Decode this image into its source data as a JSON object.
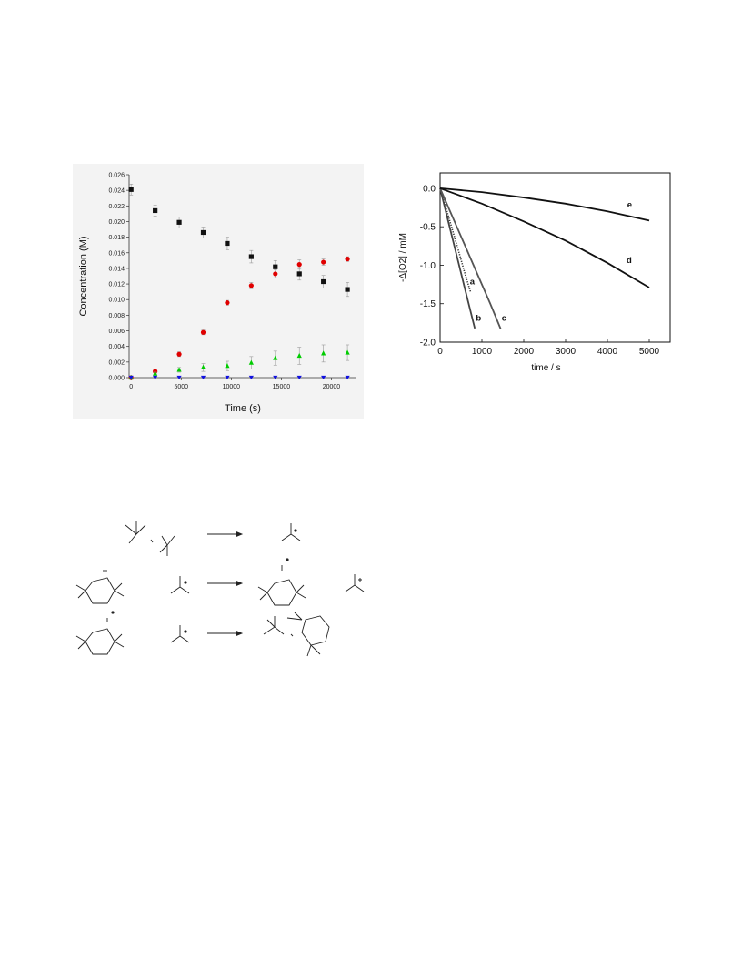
{
  "chart_data": [
    {
      "type": "scatter",
      "title": "",
      "xlabel": "Time (s)",
      "ylabel": "Concentration (M)",
      "xlim": [
        -200,
        22500
      ],
      "ylim": [
        0,
        0.026
      ],
      "x_ticks": [
        "0",
        "5000",
        "10000",
        "15000",
        "20000"
      ],
      "x_tick_values": [
        0,
        5000,
        10000,
        15000,
        20000
      ],
      "y_ticks": [
        "0.000",
        "0.002",
        "0.004",
        "0.006",
        "0.008",
        "0.010",
        "0.012",
        "0.014",
        "0.016",
        "0.018",
        "0.020",
        "0.022",
        "0.024",
        "0.026"
      ],
      "y_tick_values": [
        0,
        0.002,
        0.004,
        0.006,
        0.008,
        0.01,
        0.012,
        0.014,
        0.016,
        0.018,
        0.02,
        0.022,
        0.024,
        0.026
      ],
      "grid": false,
      "series": [
        {
          "color": "#111111",
          "marker": "square",
          "x": [
            0,
            2400,
            4800,
            7200,
            9600,
            12000,
            14400,
            16800,
            19200,
            21600
          ],
          "y": [
            0.0241,
            0.0214,
            0.0199,
            0.0186,
            0.0172,
            0.0155,
            0.0142,
            0.0133,
            0.0123,
            0.0113
          ],
          "err": [
            0.0007,
            0.0007,
            0.0007,
            0.0007,
            0.0008,
            0.0008,
            0.0008,
            0.0008,
            0.0008,
            0.0009
          ]
        },
        {
          "color": "#e00000",
          "marker": "circle",
          "x": [
            0,
            2400,
            4800,
            7200,
            9600,
            12000,
            14400,
            16800,
            19200,
            21600
          ],
          "y": [
            0.0,
            0.0008,
            0.003,
            0.0058,
            0.0096,
            0.0118,
            0.0133,
            0.0145,
            0.0148,
            0.0152
          ],
          "err": [
            0.0002,
            0.0002,
            0.0003,
            0.0003,
            0.0003,
            0.0004,
            0.0005,
            0.0006,
            0.0004,
            0.0003
          ]
        },
        {
          "color": "#00cc00",
          "marker": "triangle-up",
          "x": [
            0,
            2400,
            4800,
            7200,
            9600,
            12000,
            14400,
            16800,
            19200,
            21600
          ],
          "y": [
            0.0,
            0.0005,
            0.001,
            0.0013,
            0.0015,
            0.0019,
            0.0025,
            0.0028,
            0.0031,
            0.0032
          ],
          "err": [
            0.0001,
            0.0002,
            0.0003,
            0.0005,
            0.0006,
            0.0008,
            0.0009,
            0.0011,
            0.0011,
            0.001
          ]
        },
        {
          "color": "#1010e0",
          "marker": "triangle-down",
          "x": [
            0,
            2400,
            4800,
            7200,
            9600,
            12000,
            14400,
            16800,
            19200,
            21600
          ],
          "y": [
            0,
            0,
            0,
            0,
            0,
            0,
            0,
            0,
            0,
            0
          ],
          "err": [
            0,
            0,
            0,
            0,
            0,
            0,
            0,
            0,
            0,
            0
          ]
        }
      ]
    },
    {
      "type": "line",
      "title": "",
      "xlabel": "time / s",
      "ylabel": "-Δ[O2] / mM",
      "xlim": [
        0,
        5500
      ],
      "ylim": [
        -2.0,
        0.2
      ],
      "x_ticks": [
        "0",
        "1000",
        "2000",
        "3000",
        "4000",
        "5000"
      ],
      "x_tick_values": [
        0,
        1000,
        2000,
        3000,
        4000,
        5000
      ],
      "y_ticks": [
        "0.0",
        "-0.5",
        "-1.0",
        "-1.5",
        "-2.0"
      ],
      "y_tick_values": [
        0,
        -0.5,
        -1.0,
        -1.5,
        -2.0
      ],
      "grid": false,
      "series": [
        {
          "label": "a",
          "color": "#333333",
          "style": "dotted",
          "x": [
            0,
            150,
            300,
            450,
            600,
            730
          ],
          "y": [
            0,
            -0.27,
            -0.55,
            -0.83,
            -1.12,
            -1.35
          ],
          "label_at": [
            770,
            -1.25
          ]
        },
        {
          "label": "b",
          "color": "#444444",
          "style": "solid",
          "x": [
            0,
            200,
            400,
            600,
            830
          ],
          "y": [
            0,
            -0.44,
            -0.88,
            -1.32,
            -1.82
          ],
          "label_at": [
            920,
            -1.72
          ]
        },
        {
          "label": "c",
          "color": "#555555",
          "style": "solid",
          "x": [
            0,
            400,
            800,
            1200,
            1450
          ],
          "y": [
            0,
            -0.5,
            -1.0,
            -1.5,
            -1.83
          ],
          "label_at": [
            1530,
            -1.72
          ]
        },
        {
          "label": "d",
          "color": "#111111",
          "style": "solid",
          "x": [
            0,
            1000,
            2000,
            3000,
            4000,
            5000
          ],
          "y": [
            0,
            -0.2,
            -0.43,
            -0.68,
            -0.97,
            -1.29
          ],
          "label_at": [
            4520,
            -0.97
          ]
        },
        {
          "label": "e",
          "color": "#111111",
          "style": "solid",
          "x": [
            0,
            1000,
            2000,
            3000,
            4000,
            5000
          ],
          "y": [
            0,
            -0.05,
            -0.12,
            -0.2,
            -0.3,
            -0.42
          ],
          "label_at": [
            4530,
            -0.25
          ]
        }
      ]
    }
  ]
}
